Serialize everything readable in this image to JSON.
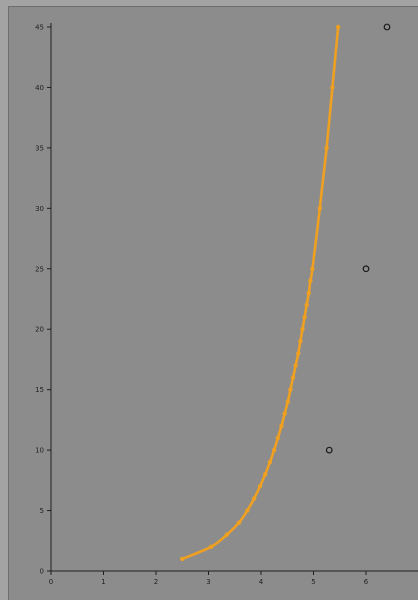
{
  "chart_data": {
    "type": "scatter",
    "title": "",
    "xlabel": "",
    "ylabel": "",
    "xlim": [
      0,
      7
    ],
    "ylim": [
      0,
      45
    ],
    "x_ticks": [
      0,
      1,
      2,
      3,
      4,
      5,
      6
    ],
    "y_ticks": [
      0,
      5,
      10,
      15,
      20,
      25,
      30,
      35,
      40,
      45
    ],
    "grid": false,
    "legend": "none",
    "series": [
      {
        "type": "line",
        "color": "#f0a020",
        "points": [
          {
            "x": 2.5,
            "y": 1
          },
          {
            "x": 3.05,
            "y": 2
          },
          {
            "x": 3.35,
            "y": 3
          },
          {
            "x": 3.58,
            "y": 4
          },
          {
            "x": 3.74,
            "y": 5
          },
          {
            "x": 3.87,
            "y": 6
          },
          {
            "x": 3.98,
            "y": 7
          },
          {
            "x": 4.08,
            "y": 8
          },
          {
            "x": 4.17,
            "y": 9
          },
          {
            "x": 4.25,
            "y": 10
          },
          {
            "x": 4.32,
            "y": 11
          },
          {
            "x": 4.39,
            "y": 12
          },
          {
            "x": 4.45,
            "y": 13
          },
          {
            "x": 4.51,
            "y": 14
          },
          {
            "x": 4.56,
            "y": 15
          },
          {
            "x": 4.61,
            "y": 16
          },
          {
            "x": 4.66,
            "y": 17
          },
          {
            "x": 4.71,
            "y": 18
          },
          {
            "x": 4.75,
            "y": 19
          },
          {
            "x": 4.79,
            "y": 20
          },
          {
            "x": 4.83,
            "y": 21
          },
          {
            "x": 4.87,
            "y": 22
          },
          {
            "x": 4.91,
            "y": 23
          },
          {
            "x": 4.94,
            "y": 24
          },
          {
            "x": 4.98,
            "y": 25
          },
          {
            "x": 5.12,
            "y": 30
          },
          {
            "x": 5.25,
            "y": 35
          },
          {
            "x": 5.36,
            "y": 40
          },
          {
            "x": 5.47,
            "y": 45
          }
        ]
      },
      {
        "type": "scatter",
        "color": "#1a1a1a",
        "marker": "open-circle",
        "points": [
          {
            "x": 5.3,
            "y": 10
          },
          {
            "x": 6.0,
            "y": 25
          },
          {
            "x": 6.4,
            "y": 45
          }
        ]
      }
    ]
  }
}
